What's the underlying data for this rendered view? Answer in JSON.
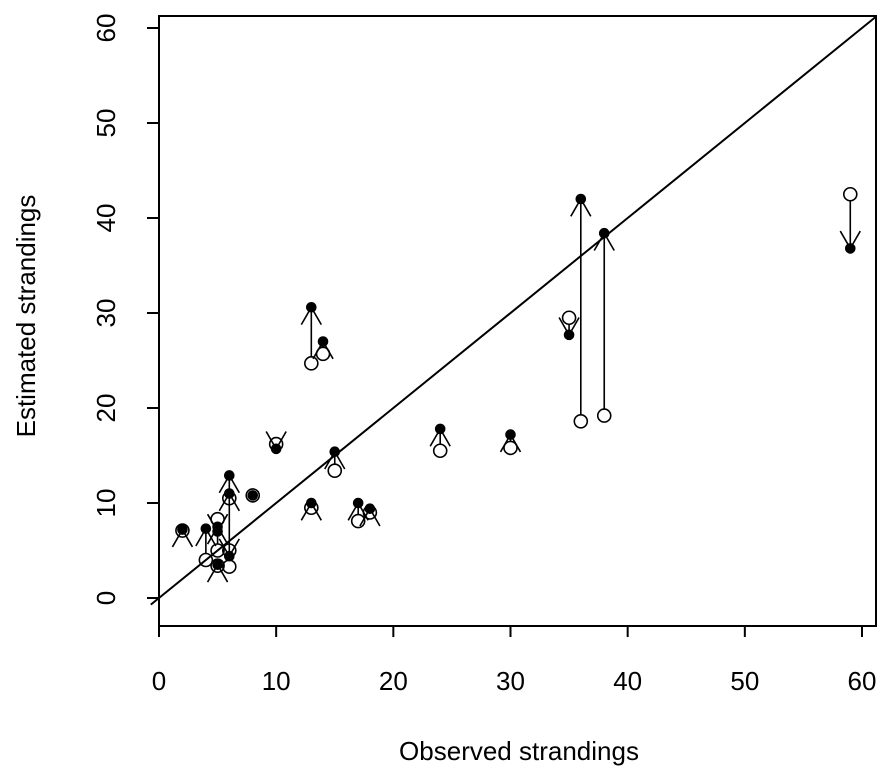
{
  "chart_data": {
    "type": "scatter",
    "title": "",
    "xlabel": "Observed strandings",
    "ylabel": "Estimated strandings",
    "xlim": [
      0,
      60
    ],
    "ylim": [
      0,
      60
    ],
    "xticks": [
      "0",
      "10",
      "20",
      "30",
      "40",
      "50",
      "60"
    ],
    "yticks": [
      "0",
      "10",
      "20",
      "30",
      "40",
      "50",
      "60"
    ],
    "grid": false,
    "reference_line": "y = x",
    "point_styles": {
      "open": "open circle",
      "filled": "filled circle"
    },
    "points": [
      {
        "x": 2,
        "open": 7.1,
        "filled": 7.2
      },
      {
        "x": 4,
        "open": 4.0,
        "filled": 7.3
      },
      {
        "x": 5,
        "open": 8.3,
        "filled": 7.0
      },
      {
        "x": 5,
        "open": 5.0,
        "filled": 7.5
      },
      {
        "x": 5,
        "open": 3.4,
        "filled": 3.5
      },
      {
        "x": 6,
        "open": 10.5,
        "filled": 12.9
      },
      {
        "x": 6,
        "open": 5.0,
        "filled": 4.4
      },
      {
        "x": 6,
        "open": 3.3,
        "filled": 11.0
      },
      {
        "x": 8,
        "open": 10.8,
        "filled": 10.8
      },
      {
        "x": 10,
        "open": 16.2,
        "filled": 15.7
      },
      {
        "x": 13,
        "open": 24.7,
        "filled": 30.6
      },
      {
        "x": 13,
        "open": 9.5,
        "filled": 10.0
      },
      {
        "x": 14,
        "open": 25.7,
        "filled": 27.0
      },
      {
        "x": 15,
        "open": 13.4,
        "filled": 15.4
      },
      {
        "x": 17,
        "open": 8.1,
        "filled": 10.0
      },
      {
        "x": 18,
        "open": 9.0,
        "filled": 9.4
      },
      {
        "x": 24,
        "open": 15.5,
        "filled": 17.8
      },
      {
        "x": 30,
        "open": 15.8,
        "filled": 17.2
      },
      {
        "x": 35,
        "open": 29.5,
        "filled": 27.7
      },
      {
        "x": 36,
        "open": 18.6,
        "filled": 42.0
      },
      {
        "x": 38,
        "open": 19.2,
        "filled": 38.4
      },
      {
        "x": 59,
        "open": 42.5,
        "filled": 36.8
      }
    ]
  }
}
